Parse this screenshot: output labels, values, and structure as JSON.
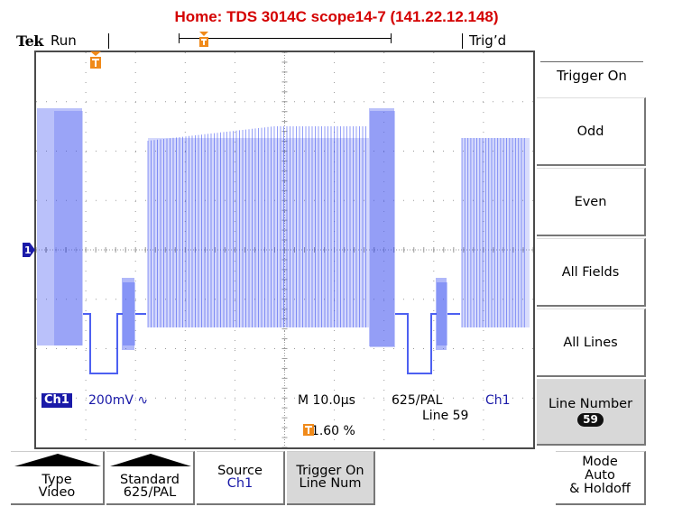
{
  "title": "Home:  TDS 3014C  scope14-7  (141.22.12.148)",
  "status": {
    "brand": "Tek",
    "acquisition": "Run",
    "trigger_state": "Trig’d"
  },
  "screen": {
    "channel": "Ch1",
    "volts_per_div": "200mV",
    "coupling_icon": "ac-coupling-icon",
    "coupling_glyph": "∿",
    "timebase": "M 10.0µs",
    "video_standard": "625/PAL",
    "line_readout": "Line 59",
    "trigger_source": "Ch1",
    "trigger_position": "11.60 %",
    "channel_marker": "1",
    "trigger_marker": "T"
  },
  "side_menu": {
    "title": "Trigger On",
    "items": [
      {
        "label": "Odd"
      },
      {
        "label": "Even"
      },
      {
        "label": "All Fields"
      },
      {
        "label": "All Lines"
      }
    ],
    "selected": {
      "label": "Line Number",
      "value": "59"
    }
  },
  "bottom_menu": [
    {
      "line1": "Type",
      "line2": "Video",
      "has_popup": true
    },
    {
      "line1": "Standard",
      "line2": "625/PAL",
      "has_popup": true
    },
    {
      "line1": "Source",
      "line2": "Ch1",
      "has_popup": false
    },
    {
      "line1": "Trigger On",
      "line2": "Line Num",
      "has_popup": false,
      "selected": true
    },
    {
      "line1": "Mode",
      "line2": "Auto",
      "line3": "& Holdoff",
      "has_popup": false
    }
  ],
  "colors": {
    "title": "#d40000",
    "trace": "#3a4ff0",
    "channel": "#1a1aa8",
    "trigger": "#f08a1a"
  }
}
